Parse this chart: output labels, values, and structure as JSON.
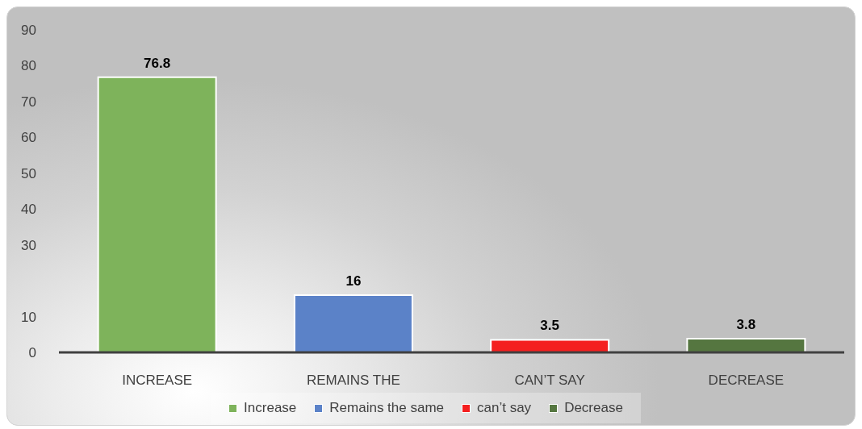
{
  "chart_data": {
    "type": "bar",
    "categories": [
      "INCREASE",
      "REMAINS THE",
      "CAN’T SAY",
      "DECREASE"
    ],
    "series": [
      {
        "name": "Increase",
        "color": "#7eb35b",
        "values": [
          76.8,
          null,
          null,
          null
        ]
      },
      {
        "name": "Remains the same",
        "color": "#5b82c8",
        "values": [
          null,
          16,
          null,
          null
        ]
      },
      {
        "name": "can’t say",
        "color": "#f41f1f",
        "values": [
          null,
          null,
          3.5,
          null
        ]
      },
      {
        "name": "Decrease",
        "color": "#557640",
        "values": [
          null,
          null,
          null,
          3.8
        ]
      }
    ],
    "stacked": true,
    "ylim": [
      0,
      90
    ],
    "yticks": [
      0,
      10,
      30,
      40,
      50,
      60,
      70,
      80,
      90
    ],
    "data_labels": true,
    "legend": "bottom"
  }
}
